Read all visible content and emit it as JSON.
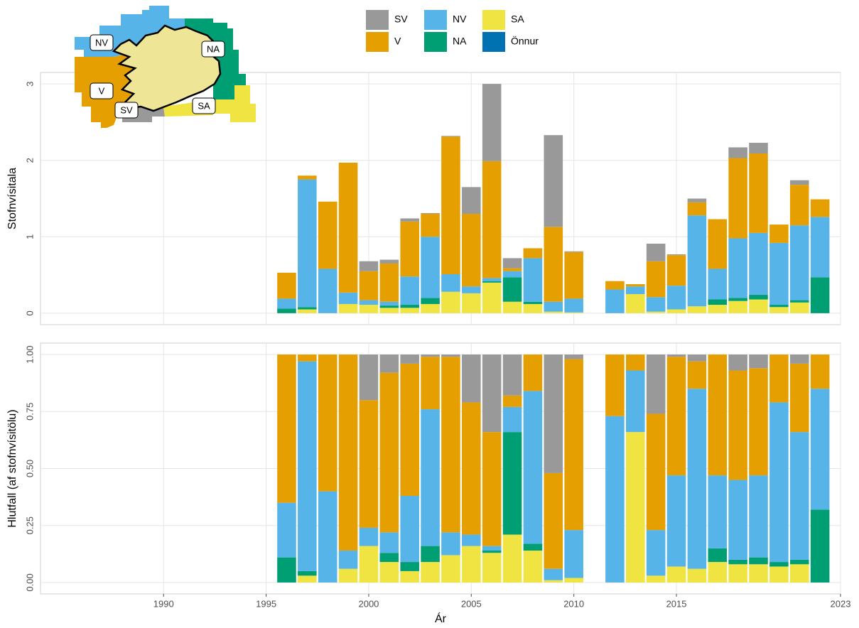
{
  "chart_data": [
    {
      "type": "bar",
      "stacked": true,
      "ylabel": "Stofnvísitala",
      "x": [
        1996,
        1997,
        1998,
        1999,
        2000,
        2001,
        2002,
        2003,
        2004,
        2005,
        2006,
        2007,
        2008,
        2009,
        2010,
        2012,
        2013,
        2014,
        2015,
        2016,
        2017,
        2018,
        2019,
        2020,
        2021,
        2022
      ],
      "xlim": [
        1984,
        2023
      ],
      "xticks": [
        1990,
        1995,
        2000,
        2005,
        2010,
        2015,
        2023
      ],
      "ylim": [
        -0.15,
        3.15
      ],
      "yticks": [
        0,
        1,
        2,
        3
      ],
      "grid": true,
      "series": [
        {
          "name": "SA",
          "color": "#F0E442",
          "values": [
            0,
            0.05,
            0,
            0.12,
            0.11,
            0.07,
            0.07,
            0.12,
            0.28,
            0.26,
            0.4,
            0.15,
            0.12,
            0.02,
            0.01,
            0,
            0.25,
            0.02,
            0.05,
            0.09,
            0.11,
            0.16,
            0.18,
            0.08,
            0.14,
            0
          ]
        },
        {
          "name": "NA",
          "color": "#009E73",
          "values": [
            0.06,
            0.03,
            0,
            0,
            0,
            0.03,
            0.04,
            0.08,
            0,
            0,
            0.02,
            0.32,
            0.03,
            0,
            0,
            0,
            0,
            0,
            0,
            0,
            0.07,
            0.04,
            0.06,
            0.03,
            0.03,
            0.47
          ]
        },
        {
          "name": "NV",
          "color": "#56B4E9",
          "values": [
            0.13,
            1.67,
            0.58,
            0.15,
            0.06,
            0.05,
            0.37,
            0.8,
            0.23,
            0.09,
            0.04,
            0.08,
            0.57,
            0.13,
            0.18,
            0.31,
            0.1,
            0.19,
            0.31,
            1.19,
            0.4,
            0.78,
            0.81,
            0.81,
            0.98,
            0.79
          ]
        },
        {
          "name": "V",
          "color": "#E69F00",
          "values": [
            0.34,
            0.05,
            0.88,
            1.7,
            0.38,
            0.5,
            0.72,
            0.3,
            1.8,
            0.95,
            1.53,
            0.04,
            0.13,
            0.98,
            0.61,
            0.11,
            0.03,
            0.47,
            0.4,
            0.17,
            0.65,
            1.05,
            1.04,
            0.24,
            0.53,
            0.23
          ]
        },
        {
          "name": "SV",
          "color": "#999999",
          "values": [
            0,
            0,
            0,
            0,
            0.13,
            0.05,
            0.04,
            0.01,
            0.01,
            0.35,
            1.01,
            0.13,
            0,
            1.2,
            0.01,
            0,
            0,
            0.23,
            0.01,
            0.05,
            0,
            0.14,
            0.14,
            0,
            0.06,
            0
          ]
        },
        {
          "name": "Önnur",
          "color": "#0072B2",
          "values": [
            0,
            0,
            0,
            0,
            0,
            0,
            0,
            0,
            0,
            0,
            0,
            0,
            0,
            0,
            0,
            0,
            0,
            0,
            0,
            0,
            0,
            0,
            0,
            0,
            0,
            0
          ]
        }
      ],
      "legend": "top"
    },
    {
      "type": "bar",
      "stacked": true,
      "ylabel": "Hlutfall (af stofnvísitölu)",
      "xlabel": "Ár",
      "x": [
        1996,
        1997,
        1998,
        1999,
        2000,
        2001,
        2002,
        2003,
        2004,
        2005,
        2006,
        2007,
        2008,
        2009,
        2010,
        2012,
        2013,
        2014,
        2015,
        2016,
        2017,
        2018,
        2019,
        2020,
        2021,
        2022
      ],
      "xlim": [
        1984,
        2023
      ],
      "xticks": [
        1990,
        1995,
        2000,
        2005,
        2010,
        2015,
        2023
      ],
      "ylim": [
        -0.05,
        1.05
      ],
      "yticks": [
        {
          "value": 0,
          "label": "0.00"
        },
        {
          "value": 0.25,
          "label": "0.25"
        },
        {
          "value": 0.5,
          "label": "0.50"
        },
        {
          "value": 0.75,
          "label": "0.75"
        },
        {
          "value": 1,
          "label": "1.00"
        }
      ],
      "grid": true,
      "series": [
        {
          "color": "#F0E442",
          "values": [
            0,
            0.03,
            0,
            0.06,
            0.16,
            0.09,
            0.05,
            0.09,
            0.12,
            0.16,
            0.13,
            0.21,
            0.14,
            0.01,
            0.02,
            0,
            0.66,
            0.03,
            0.07,
            0.06,
            0.09,
            0.08,
            0.08,
            0.07,
            0.08,
            0
          ]
        },
        {
          "color": "#009E73",
          "values": [
            0.11,
            0.02,
            0,
            0,
            0,
            0.04,
            0.04,
            0.07,
            0,
            0,
            0.01,
            0.45,
            0.03,
            0,
            0,
            0,
            0,
            0,
            0,
            0,
            0.06,
            0.02,
            0.03,
            0.02,
            0.02,
            0.32
          ]
        },
        {
          "color": "#56B4E9",
          "values": [
            0.24,
            0.92,
            0.4,
            0.08,
            0.08,
            0.09,
            0.29,
            0.6,
            0.1,
            0.05,
            0.02,
            0.11,
            0.67,
            0.05,
            0.21,
            0.73,
            0.27,
            0.2,
            0.4,
            0.79,
            0.32,
            0.35,
            0.36,
            0.7,
            0.56,
            0.53
          ]
        },
        {
          "color": "#E69F00",
          "values": [
            0.65,
            0.03,
            0.6,
            0.86,
            0.56,
            0.7,
            0.58,
            0.23,
            0.77,
            0.58,
            0.5,
            0.05,
            0.16,
            0.42,
            0.75,
            0.27,
            0.07,
            0.51,
            0.52,
            0.12,
            0.53,
            0.48,
            0.47,
            0.21,
            0.3,
            0.15
          ]
        },
        {
          "color": "#999999",
          "values": [
            0,
            0,
            0,
            0,
            0.2,
            0.08,
            0.04,
            0.01,
            0.01,
            0.21,
            0.34,
            0.18,
            0,
            0.52,
            0.02,
            0,
            0,
            0.26,
            0.01,
            0.03,
            0,
            0.07,
            0.06,
            0,
            0.04,
            0
          ]
        },
        {
          "color": "#0072B2",
          "values": [
            0,
            0,
            0,
            0,
            0,
            0,
            0,
            0,
            0,
            0,
            0,
            0,
            0,
            0,
            0,
            0,
            0,
            0,
            0,
            0,
            0,
            0,
            0,
            0,
            0,
            0
          ]
        }
      ]
    }
  ],
  "map": {
    "labels": [
      "NV",
      "NA",
      "V",
      "SV",
      "SA"
    ]
  }
}
